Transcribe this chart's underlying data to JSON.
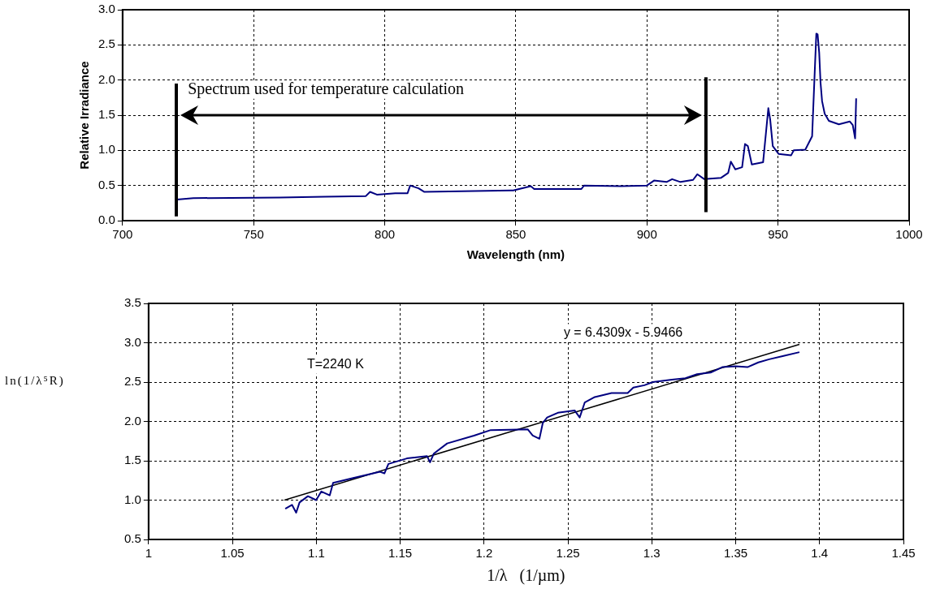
{
  "chart_data": [
    {
      "type": "line",
      "xlabel": "Wavelength (nm)",
      "ylabel": "Relative Irradiance",
      "xlim": [
        700,
        1000
      ],
      "xticks": [
        700,
        750,
        800,
        850,
        900,
        950,
        1000
      ],
      "ylim": [
        0,
        3
      ],
      "yticks": [
        {
          "value": 0,
          "label": "0.0"
        },
        {
          "value": 0.5,
          "label": "0.5"
        },
        {
          "value": 1,
          "label": "1.0"
        },
        {
          "value": 1.5,
          "label": "1.5"
        },
        {
          "value": 2,
          "label": "2.0"
        },
        {
          "value": 2.5,
          "label": "2.5"
        },
        {
          "value": 3,
          "label": "3.0"
        }
      ],
      "grid": true,
      "legend": false,
      "marker": "none",
      "line_style": "solid",
      "ref_lines": [
        {
          "axis": "x",
          "value": 720.5,
          "color": "#000000"
        },
        {
          "axis": "x",
          "value": 922.5,
          "color": "#000000"
        }
      ],
      "annotations": [
        "Spectrum used for temperature calculation"
      ],
      "series": [
        {
          "color": "#000080",
          "x": [
            720.7,
            727,
            760,
            777,
            792.8,
            794.4,
            797,
            804,
            808.7,
            809.7,
            812.9,
            815,
            848.3,
            849,
            855.7,
            857,
            875,
            876,
            890,
            900,
            902.7,
            907.5,
            909.6,
            912.8,
            917.6,
            919.2,
            921.9,
            928.3,
            931,
            932,
            933.7,
            936.3,
            937.4,
            938.5,
            940,
            944.3,
            945.4,
            946.3,
            947,
            948,
            950.2,
            955,
            956,
            960.4,
            963,
            964,
            964.6,
            965.1,
            965.7,
            966.2,
            966.8,
            967.8,
            969.4,
            973.2,
            977.4,
            978.5,
            979.4,
            979.8
          ],
          "values": [
            0.3,
            0.32,
            0.33,
            0.34,
            0.35,
            0.41,
            0.37,
            0.39,
            0.39,
            0.5,
            0.46,
            0.41,
            0.43,
            0.43,
            0.49,
            0.45,
            0.45,
            0.5,
            0.49,
            0.5,
            0.57,
            0.55,
            0.59,
            0.55,
            0.58,
            0.66,
            0.59,
            0.61,
            0.68,
            0.84,
            0.73,
            0.76,
            1.09,
            1.06,
            0.8,
            0.83,
            1.25,
            1.6,
            1.44,
            1.06,
            0.95,
            0.93,
            1.0,
            1.01,
            1.2,
            2.12,
            2.66,
            2.65,
            2.39,
            1.97,
            1.7,
            1.52,
            1.42,
            1.37,
            1.41,
            1.36,
            1.17,
            1.74
          ]
        }
      ]
    },
    {
      "type": "line",
      "xlabel": "1/λ   (1/µm)",
      "ylabel": "ln(1/λ⁵R)",
      "xlim": [
        1,
        1.45
      ],
      "xticks": [
        1,
        1.05,
        1.1,
        1.15,
        1.2,
        1.25,
        1.3,
        1.35,
        1.4,
        1.45
      ],
      "ylim": [
        0.5,
        3.5
      ],
      "yticks": [
        {
          "value": 0.5,
          "label": "0.5"
        },
        {
          "value": 1,
          "label": "1.0"
        },
        {
          "value": 1.5,
          "label": "1.5"
        },
        {
          "value": 2,
          "label": "2.0"
        },
        {
          "value": 2.5,
          "label": "2.5"
        },
        {
          "value": 3,
          "label": "3.0"
        },
        {
          "value": 3.5,
          "label": "3.5"
        }
      ],
      "grid": true,
      "legend": false,
      "marker": "none",
      "line_style": "solid",
      "annotations": [
        "T=2240 K",
        "y = 6.4309x - 5.9466"
      ],
      "series": [
        {
          "color": "#000080",
          "x": [
            1.0815,
            1.0855,
            1.088,
            1.09,
            1.095,
            1.0999,
            1.103,
            1.108,
            1.11,
            1.122,
            1.138,
            1.1406,
            1.143,
            1.154,
            1.166,
            1.1678,
            1.17,
            1.178,
            1.194,
            1.204,
            1.226,
            1.229,
            1.233,
            1.235,
            1.2376,
            1.244,
            1.254,
            1.257,
            1.26,
            1.266,
            1.276,
            1.2856,
            1.289,
            1.2956,
            1.3005,
            1.312,
            1.32,
            1.327,
            1.335,
            1.342,
            1.35,
            1.357,
            1.3635,
            1.37,
            1.378,
            1.388
          ],
          "values": [
            0.89,
            0.94,
            0.84,
            0.97,
            1.05,
            1.0,
            1.11,
            1.06,
            1.22,
            1.28,
            1.36,
            1.34,
            1.46,
            1.53,
            1.56,
            1.48,
            1.59,
            1.72,
            1.82,
            1.89,
            1.9,
            1.82,
            1.78,
            1.98,
            2.05,
            2.11,
            2.14,
            2.05,
            2.24,
            2.31,
            2.36,
            2.36,
            2.43,
            2.46,
            2.5,
            2.53,
            2.55,
            2.6,
            2.62,
            2.69,
            2.7,
            2.69,
            2.75,
            2.79,
            2.83,
            2.88
          ]
        },
        {
          "type": "line",
          "color": "#000000",
          "x": [
            1.081,
            1.388
          ],
          "values": [
            1.0,
            2.98
          ]
        }
      ]
    }
  ]
}
